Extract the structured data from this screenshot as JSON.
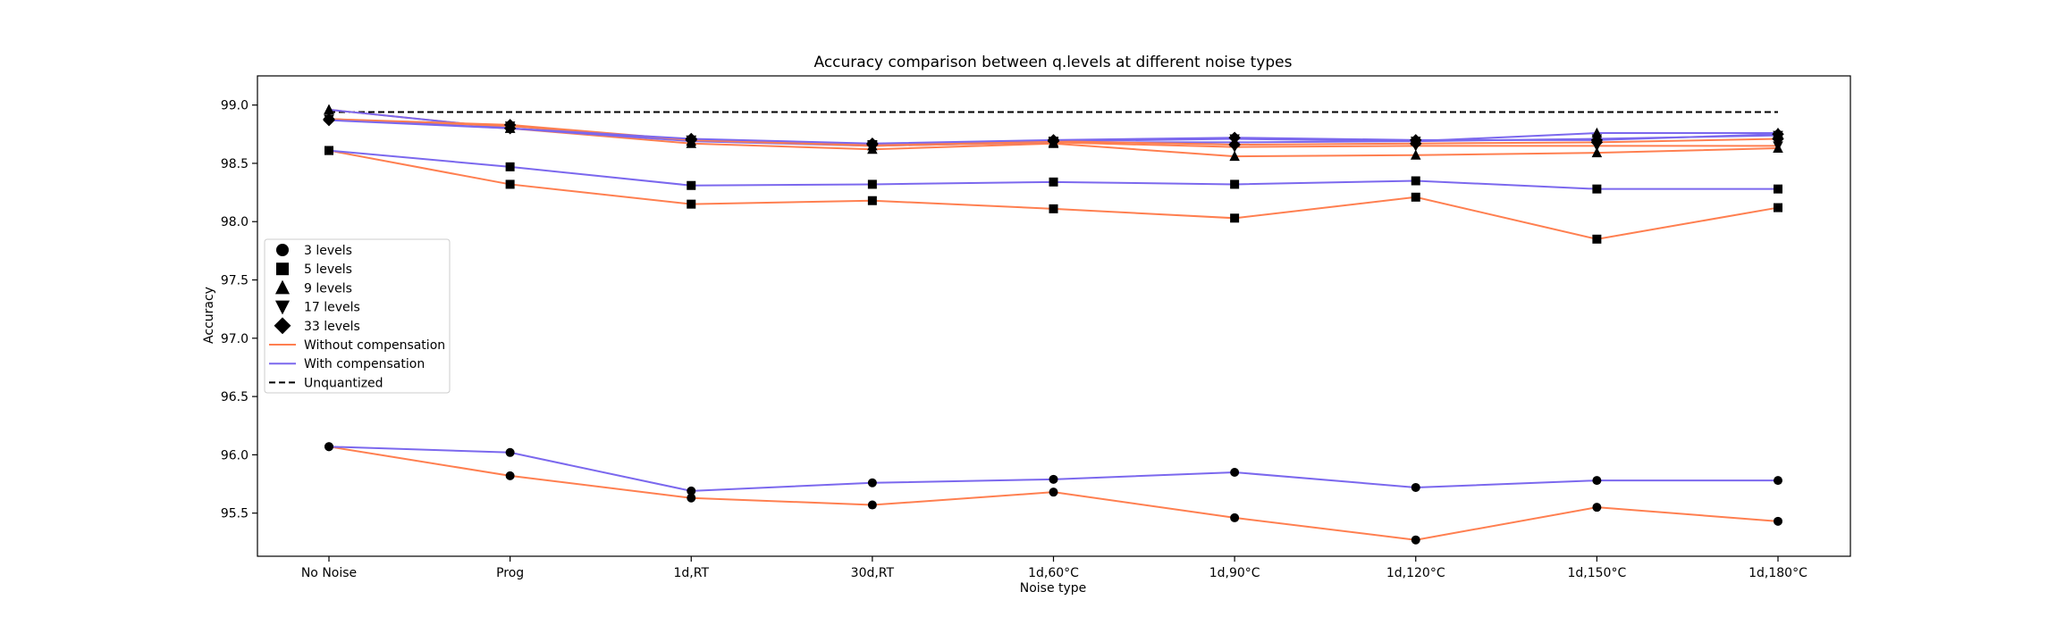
{
  "chart_data": {
    "type": "line",
    "title": "Accuracy comparison between q.levels at different noise types",
    "xlabel": "Noise type",
    "ylabel": "Accuracy",
    "categories": [
      "No Noise",
      "Prog",
      "1d,RT",
      "30d,RT",
      "1d,60°C",
      "1d,90°C",
      "1d,120°C",
      "1d,150°C",
      "1d,180°C"
    ],
    "ylim": [
      95.13,
      99.25
    ],
    "yticks": [
      95.5,
      96.0,
      96.5,
      97.0,
      97.5,
      98.0,
      98.5,
      99.0
    ],
    "ytick_labels": [
      "95.5",
      "96.0",
      "96.5",
      "97.0",
      "97.5",
      "98.0",
      "98.5",
      "99.0"
    ],
    "grid": false,
    "legend_position": "center-left",
    "colors": {
      "without_compensation": "#ff7f50",
      "with_compensation": "#7b68ee",
      "unquantized": "#000000",
      "marker": "#000000"
    },
    "unquantized": 98.94,
    "series": [
      {
        "name": "3 levels",
        "marker": "circle",
        "compensation": false,
        "values": [
          96.07,
          95.82,
          95.63,
          95.57,
          95.68,
          95.46,
          95.27,
          95.55,
          95.43
        ]
      },
      {
        "name": "3 levels",
        "marker": "circle",
        "compensation": true,
        "values": [
          96.07,
          96.02,
          95.69,
          95.76,
          95.79,
          95.85,
          95.72,
          95.78,
          95.78
        ]
      },
      {
        "name": "5 levels",
        "marker": "square",
        "compensation": false,
        "values": [
          98.61,
          98.32,
          98.15,
          98.18,
          98.11,
          98.03,
          98.21,
          97.85,
          98.12
        ]
      },
      {
        "name": "5 levels",
        "marker": "square",
        "compensation": true,
        "values": [
          98.61,
          98.47,
          98.31,
          98.32,
          98.34,
          98.32,
          98.35,
          98.28,
          98.28
        ]
      },
      {
        "name": "9 levels",
        "marker": "triangle-up",
        "compensation": false,
        "values": [
          98.96,
          98.8,
          98.67,
          98.62,
          98.67,
          98.56,
          98.57,
          98.59,
          98.63
        ]
      },
      {
        "name": "9 levels",
        "marker": "triangle-up",
        "compensation": true,
        "values": [
          98.96,
          98.8,
          98.69,
          98.65,
          98.68,
          98.68,
          98.69,
          98.76,
          98.76
        ]
      },
      {
        "name": "17 levels",
        "marker": "triangle-down",
        "compensation": false,
        "values": [
          98.88,
          98.82,
          98.7,
          98.65,
          98.68,
          98.64,
          98.65,
          98.65,
          98.65
        ]
      },
      {
        "name": "17 levels",
        "marker": "triangle-down",
        "compensation": true,
        "values": [
          98.88,
          98.8,
          98.7,
          98.66,
          98.69,
          98.71,
          98.69,
          98.71,
          98.74
        ]
      },
      {
        "name": "33 levels",
        "marker": "diamond",
        "compensation": false,
        "values": [
          98.88,
          98.83,
          98.7,
          98.66,
          98.69,
          98.66,
          98.67,
          98.68,
          98.71
        ]
      },
      {
        "name": "33 levels",
        "marker": "diamond",
        "compensation": true,
        "values": [
          98.87,
          98.8,
          98.71,
          98.67,
          98.7,
          98.72,
          98.7,
          98.7,
          98.75
        ]
      }
    ],
    "legend": [
      {
        "label": "3 levels",
        "kind": "marker",
        "marker": "circle"
      },
      {
        "label": "5 levels",
        "kind": "marker",
        "marker": "square"
      },
      {
        "label": "9 levels",
        "kind": "marker",
        "marker": "triangle-up"
      },
      {
        "label": "17 levels",
        "kind": "marker",
        "marker": "triangle-down"
      },
      {
        "label": "33 levels",
        "kind": "marker",
        "marker": "diamond"
      },
      {
        "label": "Without compensation",
        "kind": "line",
        "style": "without_compensation"
      },
      {
        "label": "With compensation",
        "kind": "line",
        "style": "with_compensation"
      },
      {
        "label": "Unquantized",
        "kind": "dashed",
        "style": "unquantized"
      }
    ]
  }
}
